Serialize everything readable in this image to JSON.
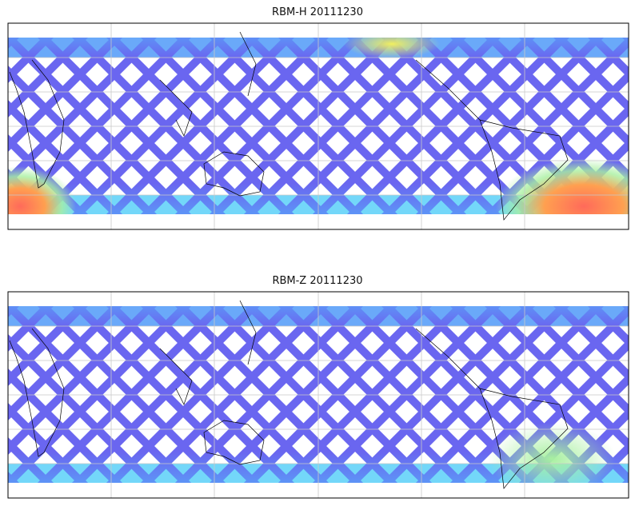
{
  "panels": [
    {
      "title": "RBM-H 20111230",
      "warm_regions": true
    },
    {
      "title": "RBM-Z 20111230",
      "warm_regions": false
    }
  ],
  "colors": {
    "track": "#6a66f0",
    "track_light": "#5aa0f8",
    "cyan": "#5ad0f8",
    "green": "#a8f0a0",
    "yellow": "#f0f060",
    "orange": "#ffa050",
    "red": "#ff6a5a",
    "grid": "#c8c8c8",
    "frame": "#000000"
  }
}
